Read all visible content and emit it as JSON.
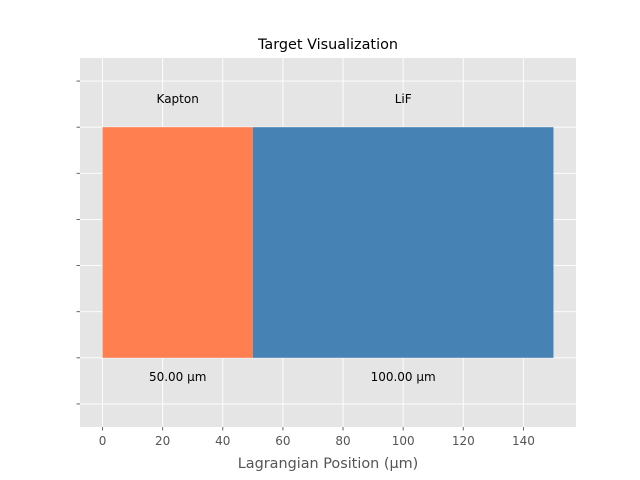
{
  "chart_data": {
    "type": "bar",
    "orientation": "horizontal-stacked",
    "title": "Target Visualization",
    "xlabel": "Lagrangian Position (µm)",
    "ylabel": "",
    "xlim": [
      -7.5,
      157.5
    ],
    "ylim": [
      -0.3,
      1.3
    ],
    "x_ticks": [
      0,
      20,
      40,
      60,
      80,
      100,
      120,
      140
    ],
    "y_tick_count": 8,
    "grid": true,
    "segments": [
      {
        "name": "Kapton",
        "start": 0,
        "end": 50,
        "thickness_label": "50.00 µm",
        "color": "#FF7F50"
      },
      {
        "name": "LiF",
        "start": 50,
        "end": 150,
        "thickness_label": "100.00 µm",
        "color": "#4682B4"
      }
    ],
    "bar_y_range": [
      0,
      1
    ],
    "name_label_y": 1.12,
    "thickness_label_y": -0.085
  }
}
